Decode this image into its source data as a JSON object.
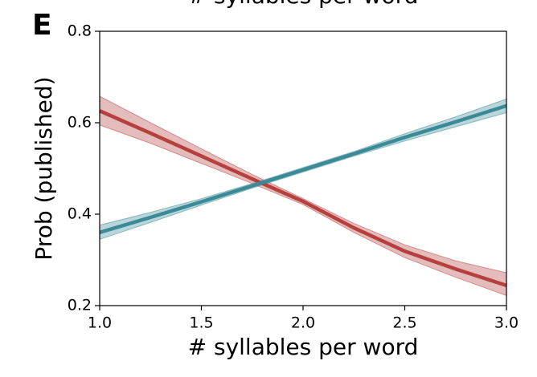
{
  "chart_data": {
    "type": "line",
    "title": "# syllables per word",
    "panel_label": "E",
    "x_label": "# syllables per word",
    "y_label": "Prob (published)",
    "x": [
      1.0,
      1.25,
      1.5,
      1.75,
      2.0,
      2.25,
      2.5,
      2.75,
      3.0
    ],
    "series": [
      {
        "color": "#b5403e",
        "values": [
          0.626,
          0.577,
          0.527,
          0.477,
          0.428,
          0.37,
          0.319,
          0.28,
          0.244
        ],
        "ci_upper": [
          0.658,
          0.6,
          0.543,
          0.487,
          0.434,
          0.38,
          0.333,
          0.298,
          0.272
        ],
        "ci_lower": [
          0.595,
          0.555,
          0.511,
          0.467,
          0.421,
          0.36,
          0.305,
          0.262,
          0.222
        ]
      },
      {
        "color": "#3a8a97",
        "values": [
          0.36,
          0.393,
          0.427,
          0.462,
          0.497,
          0.532,
          0.568,
          0.602,
          0.637
        ],
        "ci_upper": [
          0.376,
          0.404,
          0.434,
          0.467,
          0.502,
          0.537,
          0.576,
          0.613,
          0.652
        ],
        "ci_lower": [
          0.345,
          0.382,
          0.42,
          0.457,
          0.492,
          0.527,
          0.56,
          0.591,
          0.622
        ]
      }
    ],
    "xlim": [
      1.0,
      3.0
    ],
    "xticks": [
      {
        "value": 1.0,
        "label": "1.0"
      },
      1.5,
      {
        "value": 2.0,
        "label": "2.0"
      },
      2.5,
      {
        "value": 3.0,
        "label": "3.0"
      }
    ],
    "ylim": [
      0.2,
      0.8
    ],
    "yticks": [
      0.2,
      0.4,
      0.6,
      0.8
    ]
  }
}
